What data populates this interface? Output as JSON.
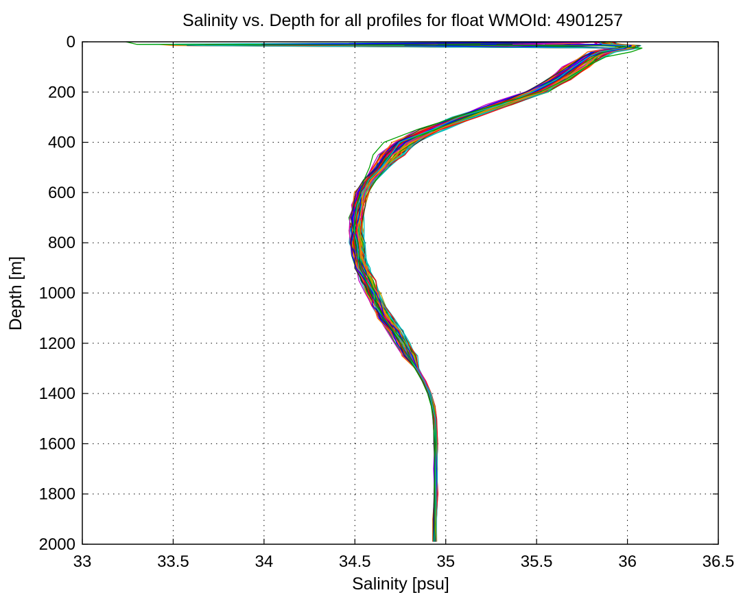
{
  "chart_data": {
    "type": "line",
    "title": "Salinity vs. Depth for all profiles for float WMOId: 4901257",
    "xlabel": "Salinity [psu]",
    "ylabel": "Depth [m]",
    "xlim": [
      33,
      36.5
    ],
    "ylim": [
      0,
      2000
    ],
    "y_reversed": true,
    "grid": true,
    "legend": "none",
    "x_ticks": [
      "33",
      "33.5",
      "34",
      "34.5",
      "35",
      "35.5",
      "36",
      "36.5"
    ],
    "y_ticks": [
      "0",
      "200",
      "400",
      "600",
      "800",
      "1000",
      "1200",
      "1400",
      "1600",
      "1800",
      "2000"
    ],
    "series_colors": [
      "#0000ff",
      "#00a000",
      "#ff0000",
      "#00c0c0",
      "#c000c0",
      "#c0a000",
      "#303030",
      "#ff8000"
    ],
    "mean_profile": {
      "depth": [
        0,
        10,
        15,
        25,
        40,
        60,
        100,
        150,
        200,
        250,
        300,
        350,
        400,
        450,
        500,
        550,
        600,
        650,
        700,
        750,
        800,
        850,
        900,
        950,
        1000,
        1050,
        1100,
        1150,
        1200,
        1250,
        1300,
        1350,
        1400,
        1450,
        1500,
        1600,
        1700,
        1800,
        1900,
        1990
      ],
      "salinity": [
        35.85,
        35.9,
        36.0,
        35.98,
        35.86,
        35.8,
        35.72,
        35.62,
        35.5,
        35.3,
        35.1,
        34.92,
        34.78,
        34.7,
        34.64,
        34.58,
        34.54,
        34.52,
        34.505,
        34.505,
        34.51,
        34.52,
        34.54,
        34.57,
        34.6,
        34.63,
        34.67,
        34.72,
        34.76,
        34.8,
        34.84,
        34.88,
        34.91,
        34.93,
        34.94,
        34.945,
        34.945,
        34.945,
        34.94,
        34.94
      ]
    },
    "series": [
      {
        "name": "",
        "depth": [
          0,
          10,
          15,
          25,
          40,
          60,
          100,
          150,
          200,
          250,
          300,
          350,
          400,
          450,
          500,
          550,
          600,
          650,
          700,
          750,
          800,
          850,
          900,
          950,
          1000,
          1050,
          1100,
          1150,
          1200,
          1250,
          1300,
          1350,
          1400,
          1450,
          1500,
          1600,
          1700,
          1800,
          1900,
          1990
        ],
        "salinity": [
          33.24,
          33.3,
          35.85,
          36.08,
          36.02,
          35.88,
          35.77,
          35.66,
          35.52,
          35.28,
          35.06,
          34.84,
          34.66,
          34.6,
          34.58,
          34.55,
          34.53,
          34.51,
          34.5,
          34.5,
          34.5,
          34.51,
          34.53,
          34.56,
          34.59,
          34.62,
          34.66,
          34.71,
          34.75,
          34.79,
          34.83,
          34.87,
          34.9,
          34.92,
          34.93,
          34.94,
          34.94,
          34.94,
          34.94,
          34.94
        ]
      }
    ]
  }
}
